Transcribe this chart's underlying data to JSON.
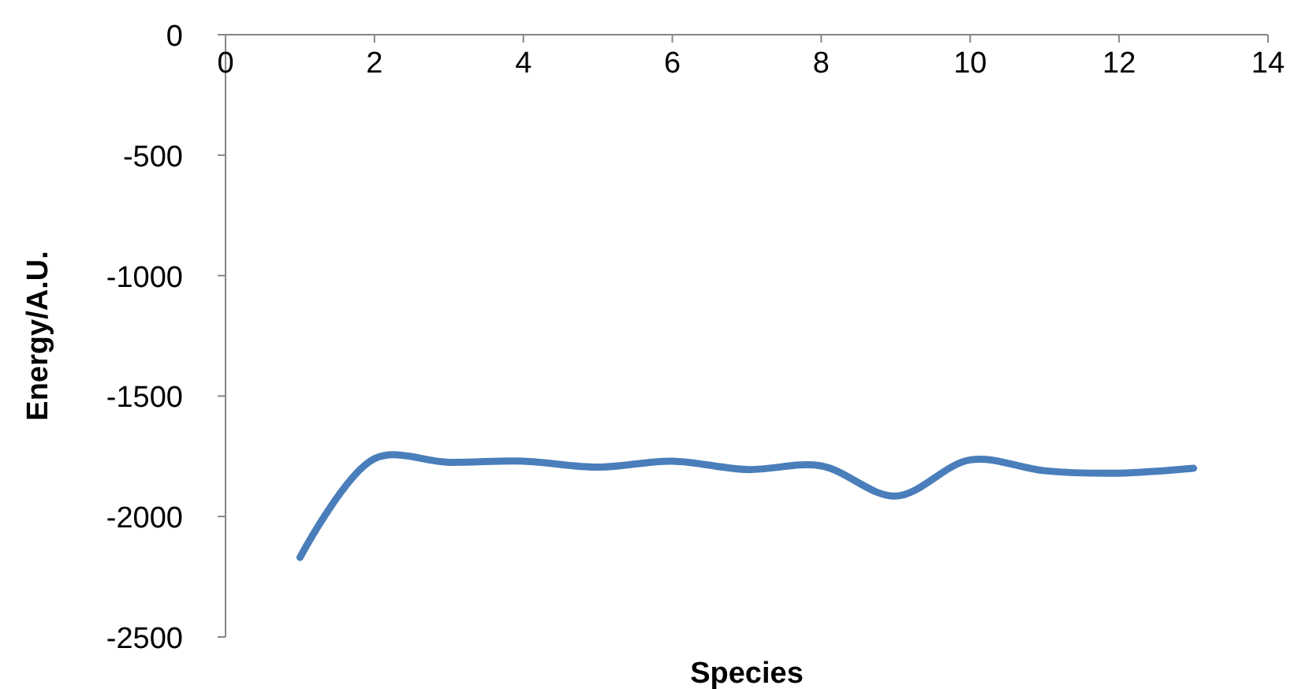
{
  "chart_data": {
    "type": "line",
    "xlabel": "Species",
    "ylabel": "Energy/A.U.",
    "x": [
      1,
      2,
      3,
      4,
      5,
      6,
      7,
      8,
      9,
      10,
      11,
      12,
      13
    ],
    "series": [
      {
        "color": "#4a7ebb",
        "values": [
          -2170,
          -1760,
          -1775,
          -1770,
          -1795,
          -1770,
          -1805,
          -1790,
          -1915,
          -1765,
          -1810,
          -1820,
          -1800
        ]
      }
    ],
    "xlim": [
      0,
      14
    ],
    "xticks": [
      0,
      2,
      4,
      6,
      8,
      10,
      12,
      14
    ],
    "ylim": [
      -2500,
      0
    ],
    "yticks": [
      -2500,
      -2000,
      -1500,
      -1000,
      -500,
      0
    ],
    "grid": false,
    "marker": "none",
    "line_style": "solid"
  }
}
